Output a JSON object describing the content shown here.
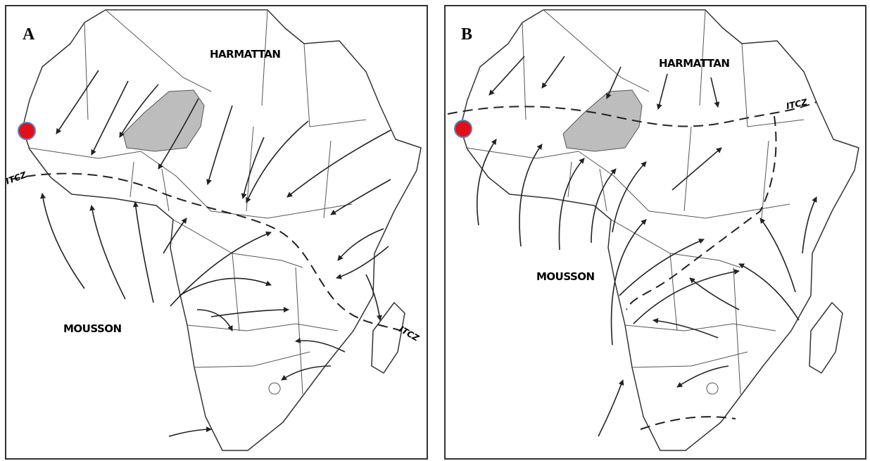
{
  "panels": [
    {
      "label": "A",
      "harmattan": "HARMATTAN",
      "mousson": "MOUSSON",
      "itcz_west": "ITCZ",
      "itcz_east": "ITCZ"
    },
    {
      "label": "B",
      "harmattan": "HARMATTAN",
      "mousson": "MOUSSON",
      "itcz": "ITCZ"
    }
  ]
}
